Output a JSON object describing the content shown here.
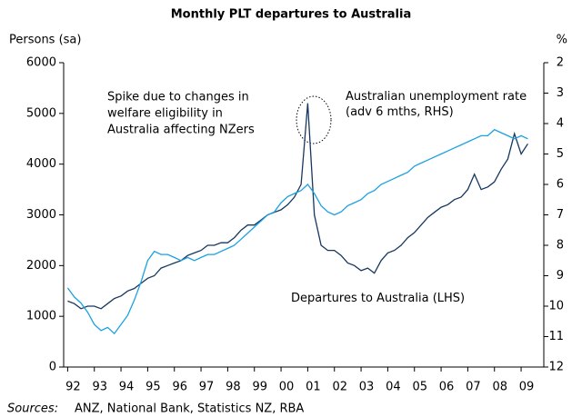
{
  "chart_data": {
    "type": "line",
    "title": "Monthly PLT departures to Australia",
    "y_label": "Persons (sa)",
    "y2_label": "%",
    "x": [
      1992,
      1992.25,
      1992.5,
      1992.75,
      1993,
      1993.25,
      1993.5,
      1993.75,
      1994,
      1994.25,
      1994.5,
      1994.75,
      1995,
      1995.25,
      1995.5,
      1995.75,
      1996,
      1996.25,
      1996.5,
      1996.75,
      1997,
      1997.25,
      1997.5,
      1997.75,
      1998,
      1998.25,
      1998.5,
      1998.75,
      1999,
      1999.25,
      1999.5,
      1999.75,
      2000,
      2000.25,
      2000.5,
      2000.75,
      2001,
      2001.25,
      2001.5,
      2001.75,
      2002,
      2002.25,
      2002.5,
      2002.75,
      2003,
      2003.25,
      2003.5,
      2003.75,
      2004,
      2004.25,
      2004.5,
      2004.75,
      2005,
      2005.25,
      2005.5,
      2005.75,
      2006,
      2006.25,
      2006.5,
      2006.75,
      2007,
      2007.25,
      2007.5,
      2007.75,
      2008,
      2008.25,
      2008.5,
      2008.75,
      2009,
      2009.25
    ],
    "xlim": [
      1991.85,
      2009.85
    ],
    "xticks": [
      {
        "value": 1992,
        "label": "92"
      },
      {
        "value": 1993,
        "label": "93"
      },
      {
        "value": 1994,
        "label": "94"
      },
      {
        "value": 1995,
        "label": "95"
      },
      {
        "value": 1996,
        "label": "96"
      },
      {
        "value": 1997,
        "label": "97"
      },
      {
        "value": 1998,
        "label": "98"
      },
      {
        "value": 1999,
        "label": "99"
      },
      {
        "value": 2000,
        "label": "00"
      },
      {
        "value": 2001,
        "label": "01"
      },
      {
        "value": 2002,
        "label": "02"
      },
      {
        "value": 2003,
        "label": "03"
      },
      {
        "value": 2004,
        "label": "04"
      },
      {
        "value": 2005,
        "label": "05"
      },
      {
        "value": 2006,
        "label": "06"
      },
      {
        "value": 2007,
        "label": "07"
      },
      {
        "value": 2008,
        "label": "08"
      },
      {
        "value": 2009,
        "label": "09"
      }
    ],
    "ylim": [
      0,
      6000
    ],
    "yticks": [
      0,
      1000,
      2000,
      3000,
      4000,
      5000,
      6000
    ],
    "y2lim": [
      12,
      2
    ],
    "y2ticks": [
      2,
      3,
      4,
      5,
      6,
      7,
      8,
      9,
      10,
      11,
      12
    ],
    "series": [
      {
        "name": "Departures to Australia (LHS)",
        "color": "#17375e",
        "values": [
          1300,
          1250,
          1150,
          1200,
          1200,
          1150,
          1250,
          1350,
          1400,
          1500,
          1550,
          1650,
          1750,
          1800,
          1950,
          2000,
          2050,
          2100,
          2200,
          2250,
          2300,
          2400,
          2400,
          2450,
          2450,
          2550,
          2700,
          2800,
          2800,
          2900,
          3000,
          3050,
          3100,
          3200,
          3350,
          3600,
          5200,
          3000,
          2400,
          2300,
          2300,
          2200,
          2050,
          2000,
          1900,
          1950,
          1850,
          2100,
          2250,
          2300,
          2400,
          2550,
          2650,
          2800,
          2950,
          3050,
          3150,
          3200,
          3300,
          3350,
          3500,
          3800,
          3500,
          3550,
          3650,
          3900,
          4100,
          4600,
          4200,
          4400
        ]
      },
      {
        "name": "Australian unemployment rate (adv 6 mths, RHS)",
        "color": "#1ba1e2",
        "axis": "y2",
        "values": [
          9.4,
          9.7,
          9.9,
          10.2,
          10.6,
          10.8,
          10.7,
          10.9,
          10.6,
          10.3,
          9.8,
          9.2,
          8.5,
          8.2,
          8.3,
          8.3,
          8.4,
          8.5,
          8.4,
          8.5,
          8.4,
          8.3,
          8.3,
          8.2,
          8.1,
          8.0,
          7.8,
          7.6,
          7.4,
          7.2,
          7.0,
          6.9,
          6.6,
          6.4,
          6.3,
          6.2,
          6.0,
          6.3,
          6.7,
          6.9,
          7.0,
          6.9,
          6.7,
          6.6,
          6.5,
          6.3,
          6.2,
          6.0,
          5.9,
          5.8,
          5.7,
          5.6,
          5.4,
          5.3,
          5.2,
          5.1,
          5.0,
          4.9,
          4.8,
          4.7,
          4.6,
          4.5,
          4.4,
          4.4,
          4.2,
          4.3,
          4.4,
          4.5,
          4.4,
          4.5
        ]
      }
    ],
    "annotation": [
      "Spike due to changes in",
      "welfare eligibility in",
      "Australia affecting NZers"
    ],
    "source_label": "Sources:",
    "source_text": "ANZ, National Bank, Statistics NZ, RBA"
  }
}
